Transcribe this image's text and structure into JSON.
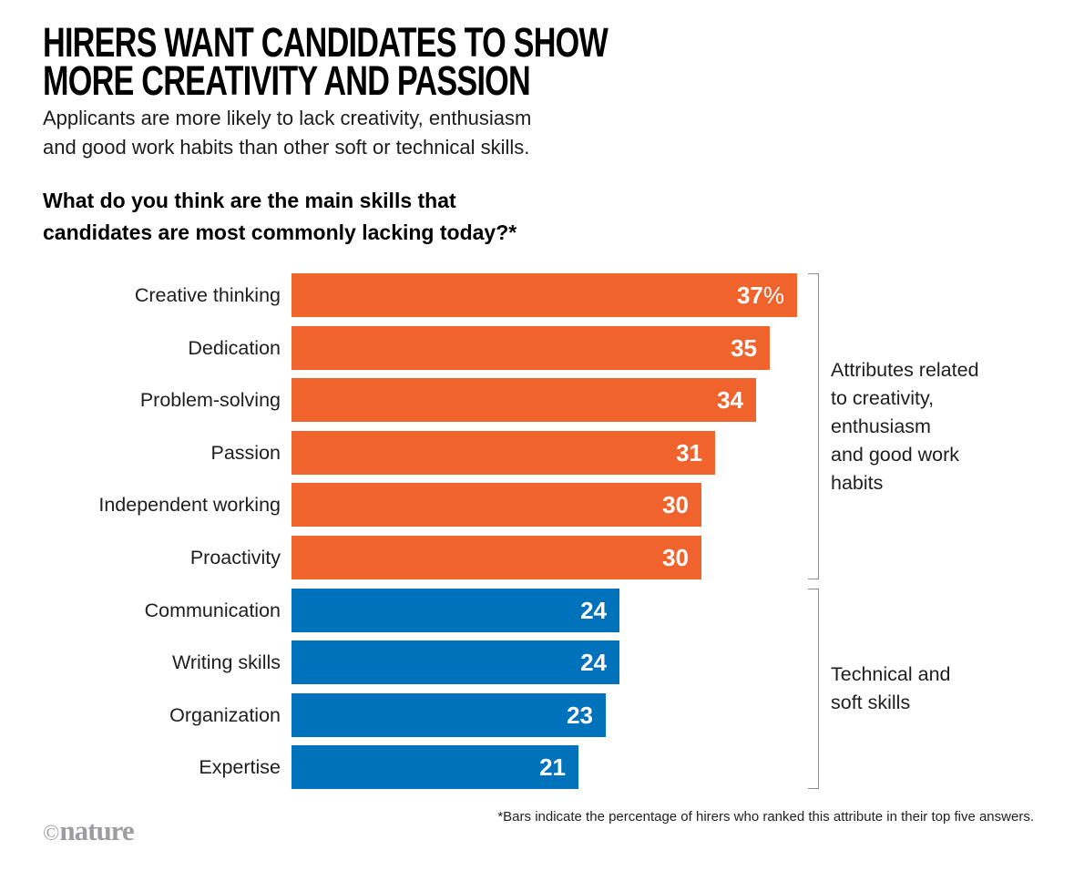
{
  "header": {
    "title_lines": [
      "HIRERS WANT CANDIDATES TO SHOW",
      "MORE CREATIVITY AND PASSION"
    ],
    "subtitle_lines": [
      "Applicants are more likely to lack creativity, enthusiasm",
      "and good work habits than other soft or technical skills."
    ],
    "question_lines": [
      "What do you think are the main skills that",
      "candidates are most commonly lacking today?*"
    ]
  },
  "chart_data": {
    "type": "bar",
    "orientation": "horizontal",
    "title": "What do you think are the main skills that candidates are most commonly lacking today?*",
    "unit": "percent of hirers",
    "xlim": [
      0,
      40
    ],
    "grid": false,
    "legend": false,
    "categories": [
      "Creative thinking",
      "Dedication",
      "Problem-solving",
      "Passion",
      "Independent working",
      "Proactivity",
      "Communication",
      "Writing skills",
      "Organization",
      "Expertise"
    ],
    "values": [
      37,
      35,
      34,
      31,
      30,
      30,
      24,
      24,
      23,
      21
    ],
    "bars": [
      {
        "label": "Creative thinking",
        "value": 37,
        "display": "37",
        "suffix": "%",
        "group": "creativity"
      },
      {
        "label": "Dedication",
        "value": 35,
        "display": "35",
        "suffix": "",
        "group": "creativity"
      },
      {
        "label": "Problem-solving",
        "value": 34,
        "display": "34",
        "suffix": "",
        "group": "creativity"
      },
      {
        "label": "Passion",
        "value": 31,
        "display": "31",
        "suffix": "",
        "group": "creativity"
      },
      {
        "label": "Independent working",
        "value": 30,
        "display": "30",
        "suffix": "",
        "group": "creativity"
      },
      {
        "label": "Proactivity",
        "value": 30,
        "display": "30",
        "suffix": "",
        "group": "creativity"
      },
      {
        "label": "Communication",
        "value": 24,
        "display": "24",
        "suffix": "",
        "group": "technical"
      },
      {
        "label": "Writing skills",
        "value": 24,
        "display": "24",
        "suffix": "",
        "group": "technical"
      },
      {
        "label": "Organization",
        "value": 23,
        "display": "23",
        "suffix": "",
        "group": "technical"
      },
      {
        "label": "Expertise",
        "value": 21,
        "display": "21",
        "suffix": "",
        "group": "technical"
      }
    ],
    "colors": {
      "creativity": "#F0632D",
      "technical": "#0072BC",
      "bracket": "#8f8f8f"
    },
    "annotations": [
      {
        "lines": [
          "Attributes related",
          "to creativity,",
          "enthusiasm",
          "and good work",
          "habits"
        ],
        "from_row": 0,
        "to_row": 5,
        "group": "creativity"
      },
      {
        "lines": [
          "Technical and",
          "soft skills"
        ],
        "from_row": 6,
        "to_row": 9,
        "group": "technical"
      }
    ]
  },
  "footer": {
    "footnote": "*Bars indicate the percentage of hirers who ranked this attribute in their top five answers.",
    "credit_symbol": "©",
    "credit_name": "nature"
  }
}
